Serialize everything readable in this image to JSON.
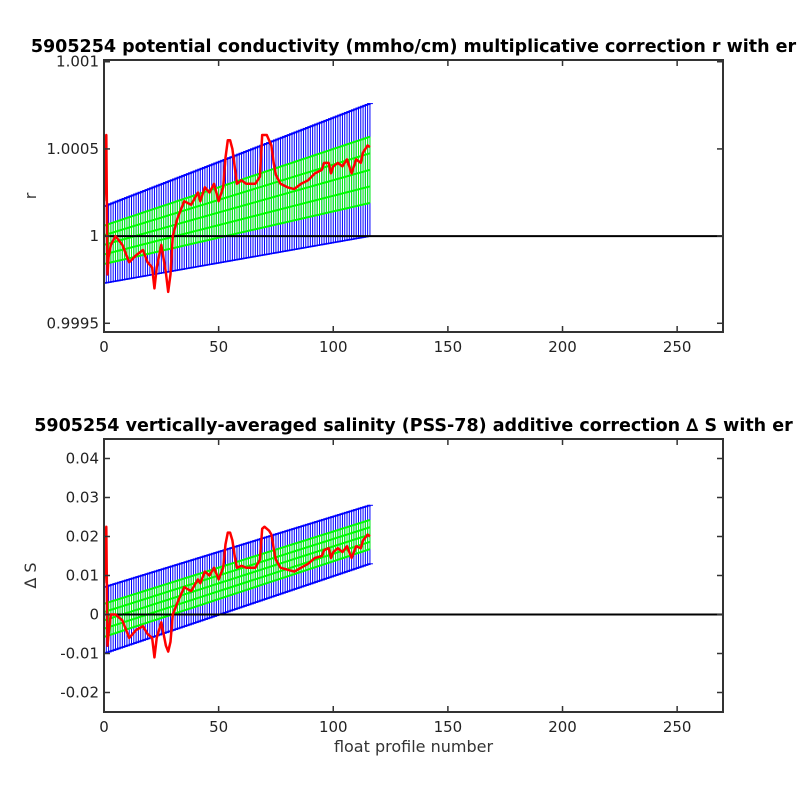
{
  "chart_data": [
    {
      "type": "line",
      "title": "5905254 potential conductivity (mmho/cm) multiplicative correction r with er",
      "xlabel": "",
      "ylabel": "r",
      "xlim": [
        0,
        270
      ],
      "ylim": [
        0.99945,
        1.00101
      ],
      "xticks": [
        0,
        50,
        100,
        150,
        200,
        250
      ],
      "xtick_labels": [
        "0",
        "50",
        "100",
        "150",
        "200",
        "250"
      ],
      "yticks": [
        0.9995,
        1,
        1.0005,
        1.001
      ],
      "ytick_labels": [
        "0.9995",
        "1",
        "1.0005",
        "1.001"
      ],
      "grid": false,
      "legend": "none",
      "reference_line": 1,
      "colors": {
        "fit": "#00ff00",
        "error": "#0000ff",
        "raw": "#ff0000",
        "reference": "#000000"
      },
      "series": [
        {
          "role": "fit",
          "x": [
            0,
            116
          ],
          "y": [
            0.99995,
            1.00038
          ],
          "error": [
            0.00022,
            0.00038
          ]
        },
        {
          "role": "raw",
          "x": [
            0,
            1,
            1.5,
            2,
            3,
            5,
            8,
            11,
            14,
            17,
            19,
            21,
            22,
            23,
            25,
            27,
            28,
            29,
            30,
            32,
            35,
            38,
            41,
            42,
            44,
            46,
            48,
            50,
            52,
            53,
            54,
            55,
            56,
            57,
            58,
            60,
            62,
            64,
            66,
            68,
            69,
            70,
            71,
            72,
            73,
            74,
            75,
            77,
            80,
            83,
            86,
            89,
            92,
            95,
            96,
            98,
            99,
            100,
            102,
            104,
            106,
            108,
            110,
            112,
            113,
            115,
            116
          ],
          "y": [
            1.0002,
            1.00058,
            0.99978,
            0.99988,
            0.99995,
            1.0,
            0.99995,
            0.99985,
            0.99989,
            0.99992,
            0.99985,
            0.99982,
            0.9997,
            0.99982,
            0.99995,
            0.99979,
            0.99968,
            0.99978,
            1.0,
            1.0001,
            1.0002,
            1.00018,
            1.00025,
            1.0002,
            1.00028,
            1.00025,
            1.0003,
            1.0002,
            1.00028,
            1.00045,
            1.00055,
            1.00055,
            1.0005,
            1.0004,
            1.0003,
            1.00032,
            1.0003,
            1.0003,
            1.0003,
            1.00034,
            1.00058,
            1.00058,
            1.00058,
            1.00055,
            1.00052,
            1.00042,
            1.00035,
            1.0003,
            1.00028,
            1.00027,
            1.0003,
            1.00032,
            1.00036,
            1.00038,
            1.00042,
            1.00042,
            1.00036,
            1.0004,
            1.00042,
            1.0004,
            1.00044,
            1.00036,
            1.00044,
            1.00042,
            1.00048,
            1.00052,
            1.00051
          ]
        }
      ]
    },
    {
      "type": "line",
      "title": "5905254 vertically-averaged salinity (PSS-78) additive correction ∆ S with er",
      "xlabel": "float profile number",
      "ylabel": "∆ S",
      "xlim": [
        0,
        270
      ],
      "ylim": [
        -0.025,
        0.045
      ],
      "xticks": [
        0,
        50,
        100,
        150,
        200,
        250
      ],
      "xtick_labels": [
        "0",
        "50",
        "100",
        "150",
        "200",
        "250"
      ],
      "yticks": [
        -0.02,
        -0.01,
        0,
        0.01,
        0.02,
        0.03,
        0.04
      ],
      "ytick_labels": [
        "-0.02",
        "-0.01",
        "0",
        "0.01",
        "0.02",
        "0.03",
        "0.04"
      ],
      "grid": false,
      "legend": "none",
      "reference_line": 0,
      "colors": {
        "fit": "#00ff00",
        "error": "#0000ff",
        "raw": "#ff0000",
        "reference": "#000000"
      },
      "series": [
        {
          "role": "fit",
          "x": [
            0,
            116
          ],
          "y": [
            -0.0015,
            0.0205
          ],
          "error": [
            0.0085,
            0.0075
          ]
        },
        {
          "role": "raw",
          "x": [
            0,
            1,
            1.5,
            2,
            3,
            5,
            8,
            11,
            14,
            17,
            19,
            21,
            22,
            23,
            25,
            27,
            28,
            29,
            30,
            32,
            35,
            38,
            41,
            42,
            44,
            46,
            48,
            50,
            52,
            53,
            54,
            55,
            56,
            57,
            58,
            60,
            62,
            64,
            66,
            68,
            69,
            70,
            71,
            72,
            73,
            74,
            75,
            77,
            80,
            83,
            86,
            89,
            92,
            95,
            96,
            98,
            99,
            100,
            102,
            104,
            106,
            108,
            110,
            112,
            113,
            115,
            116
          ],
          "y": [
            0.008,
            0.0225,
            -0.008,
            -0.005,
            0.0,
            0.0,
            -0.0015,
            -0.006,
            -0.004,
            -0.003,
            -0.005,
            -0.006,
            -0.011,
            -0.006,
            -0.002,
            -0.008,
            -0.0095,
            -0.007,
            0.0,
            0.003,
            0.007,
            0.006,
            0.009,
            0.008,
            0.011,
            0.01,
            0.012,
            0.009,
            0.012,
            0.018,
            0.021,
            0.021,
            0.019,
            0.015,
            0.012,
            0.0125,
            0.012,
            0.012,
            0.012,
            0.014,
            0.022,
            0.0225,
            0.022,
            0.0215,
            0.0205,
            0.017,
            0.014,
            0.012,
            0.0115,
            0.011,
            0.012,
            0.013,
            0.0145,
            0.015,
            0.0165,
            0.017,
            0.0145,
            0.016,
            0.017,
            0.016,
            0.0175,
            0.0145,
            0.0175,
            0.017,
            0.019,
            0.0205,
            0.02
          ]
        }
      ]
    }
  ]
}
